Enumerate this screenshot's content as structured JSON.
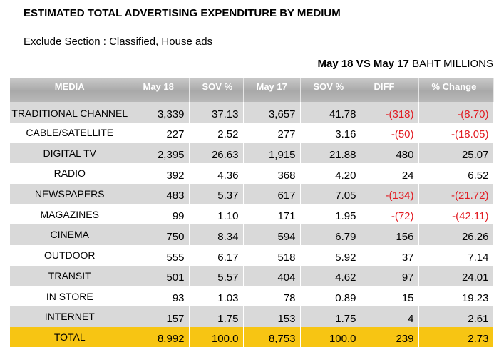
{
  "title": "ESTIMATED TOTAL ADVERTISING EXPENDITURE BY MEDIUM",
  "subtitle": "Exclude Section : Classified, House ads",
  "comparison": "May 18 VS May 17",
  "unit": "BAHT MILLIONS",
  "colors": {
    "header": "#b0b0b0",
    "stripe": "#d9d9d9",
    "total": "#f7c513",
    "negative": "#e11b22"
  },
  "columns": [
    "MEDIA",
    "May 18",
    "SOV %",
    "May 17",
    "SOV %",
    "DIFF",
    "% Change"
  ],
  "rows": [
    {
      "media": "TRADITIONAL CHANNEL",
      "may18": "3,339",
      "sov18": "37.13",
      "may17": "3,657",
      "sov17": "41.78",
      "diff": "-(318)",
      "change": "-(8.70)"
    },
    {
      "media": "CABLE/SATELLITE",
      "may18": "227",
      "sov18": "2.52",
      "may17": "277",
      "sov17": "3.16",
      "diff": "-(50)",
      "change": "-(18.05)"
    },
    {
      "media": "DIGITAL TV",
      "may18": "2,395",
      "sov18": "26.63",
      "may17": "1,915",
      "sov17": "21.88",
      "diff": "480",
      "change": "25.07"
    },
    {
      "media": "RADIO",
      "may18": "392",
      "sov18": "4.36",
      "may17": "368",
      "sov17": "4.20",
      "diff": "24",
      "change": "6.52"
    },
    {
      "media": "NEWSPAPERS",
      "may18": "483",
      "sov18": "5.37",
      "may17": "617",
      "sov17": "7.05",
      "diff": "-(134)",
      "change": "-(21.72)"
    },
    {
      "media": "MAGAZINES",
      "may18": "99",
      "sov18": "1.10",
      "may17": "171",
      "sov17": "1.95",
      "diff": "-(72)",
      "change": "-(42.11)"
    },
    {
      "media": "CINEMA",
      "may18": "750",
      "sov18": "8.34",
      "may17": "594",
      "sov17": "6.79",
      "diff": "156",
      "change": "26.26"
    },
    {
      "media": "OUTDOOR",
      "may18": "555",
      "sov18": "6.17",
      "may17": "518",
      "sov17": "5.92",
      "diff": "37",
      "change": "7.14"
    },
    {
      "media": "TRANSIT",
      "may18": "501",
      "sov18": "5.57",
      "may17": "404",
      "sov17": "4.62",
      "diff": "97",
      "change": "24.01"
    },
    {
      "media": "IN STORE",
      "may18": "93",
      "sov18": "1.03",
      "may17": "78",
      "sov17": "0.89",
      "diff": "15",
      "change": "19.23"
    },
    {
      "media": "INTERNET",
      "may18": "157",
      "sov18": "1.75",
      "may17": "153",
      "sov17": "1.75",
      "diff": "4",
      "change": "2.61"
    }
  ],
  "total": {
    "media": "TOTAL",
    "may18": "8,992",
    "sov18": "100.0",
    "may17": "8,753",
    "sov17": "100.0",
    "diff": "239",
    "change": "2.73"
  }
}
